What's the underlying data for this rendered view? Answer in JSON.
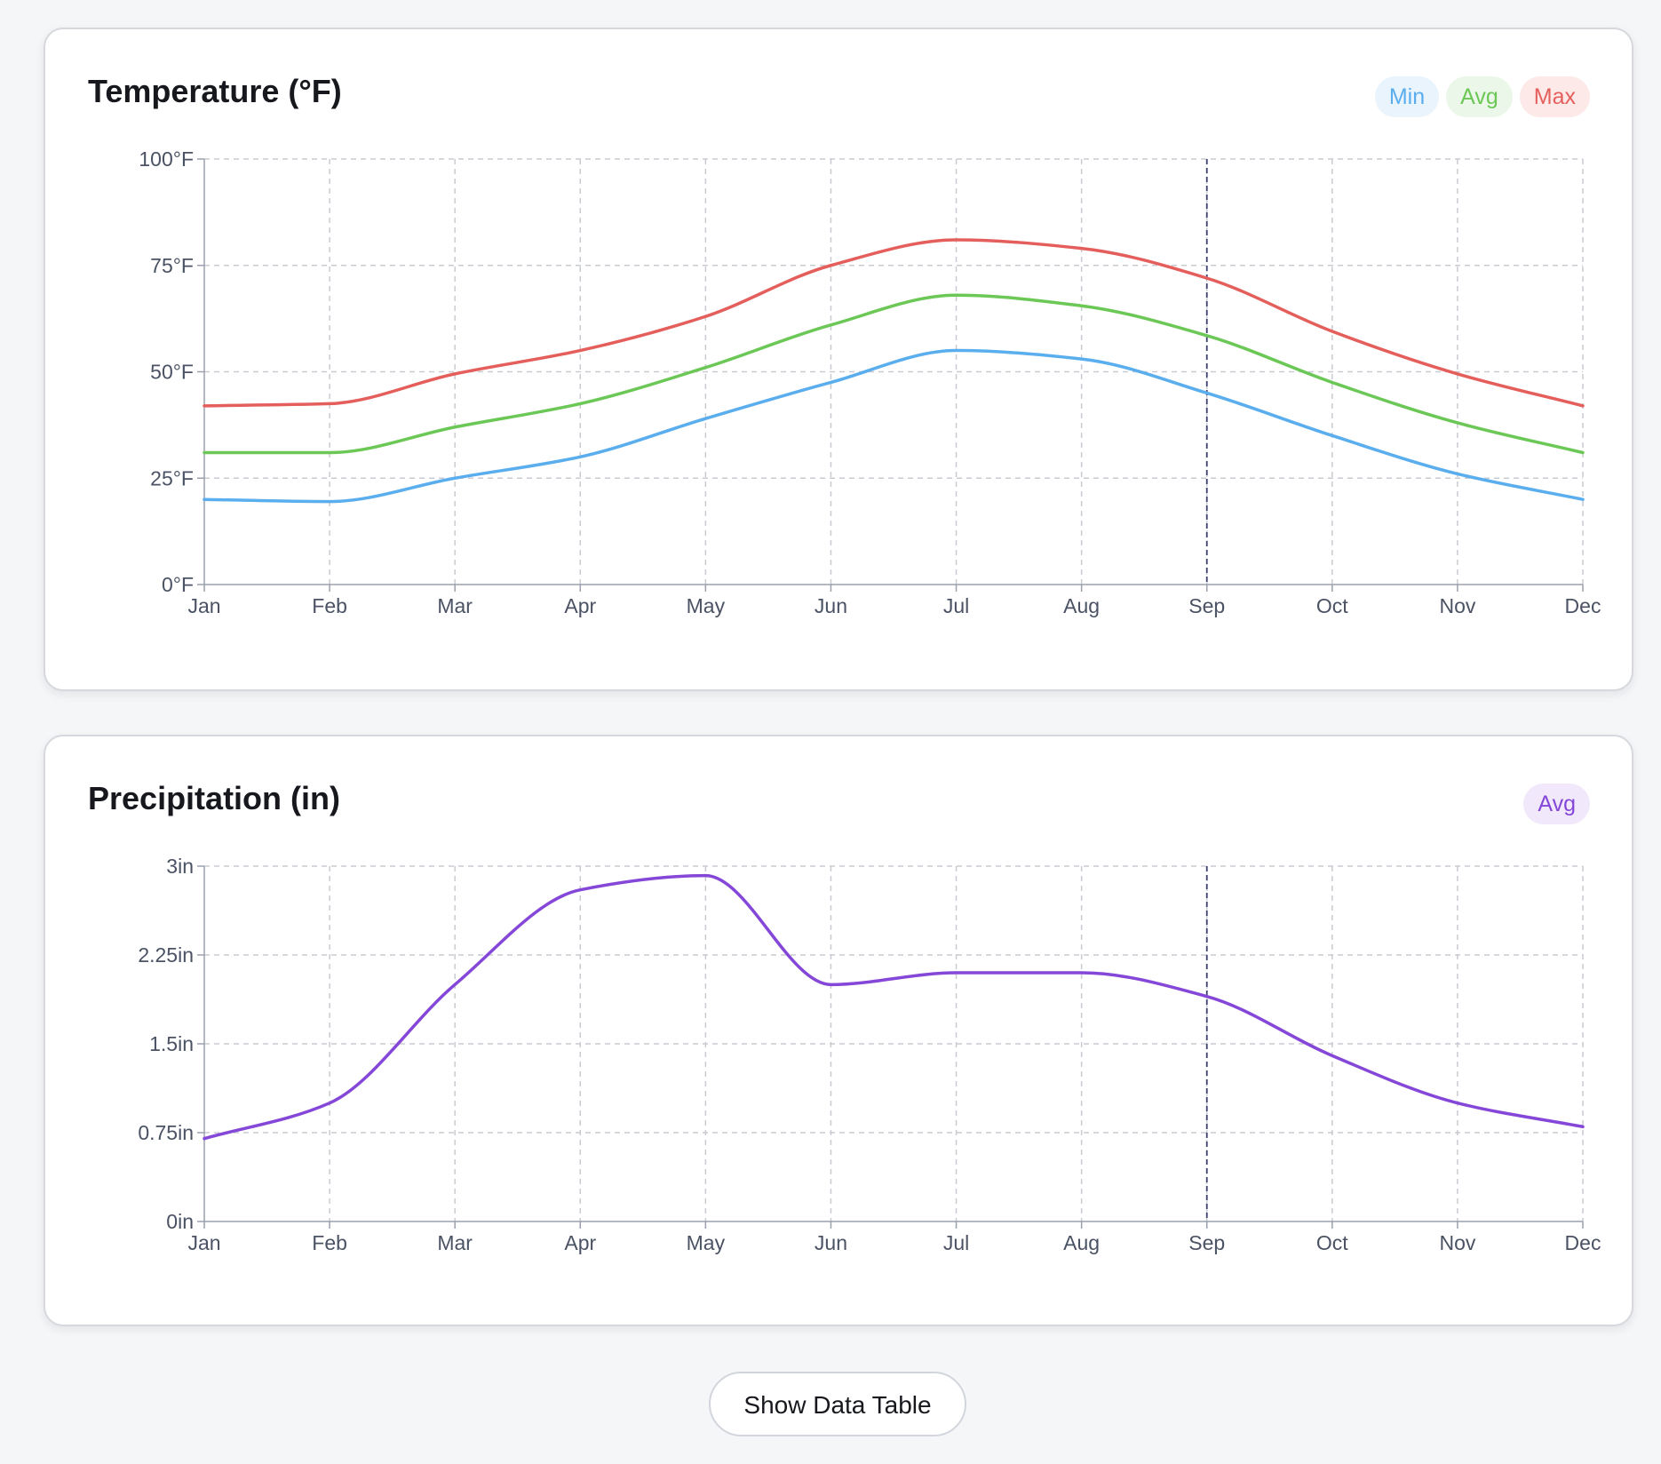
{
  "colors": {
    "min": "#5aaeee",
    "avg": "#6cc856",
    "max": "#e45f5c",
    "precip": "#8547d8",
    "min_bg": "#e9f4fd",
    "avg_bg": "#ebf7e8",
    "max_bg": "#fce9e8",
    "precip_bg": "#f1e9fb",
    "cursor": "#3d3f6e"
  },
  "temperature": {
    "title": "Temperature (°F)",
    "legend": {
      "min": "Min",
      "avg": "Avg",
      "max": "Max"
    }
  },
  "precipitation": {
    "title": "Precipitation (in)",
    "legend": {
      "avg": "Avg"
    }
  },
  "controls": {
    "show_table_label": "Show Data Table"
  },
  "chart_data": [
    {
      "type": "line",
      "id": "temperature",
      "title": "Temperature (°F)",
      "categories": [
        "Jan",
        "Feb",
        "Mar",
        "Apr",
        "May",
        "Jun",
        "Jul",
        "Aug",
        "Sep",
        "Oct",
        "Nov",
        "Dec"
      ],
      "ylim": [
        0,
        100
      ],
      "yticks": [
        0,
        25,
        50,
        75,
        100
      ],
      "ytick_labels": [
        "0°F",
        "25°F",
        "50°F",
        "75°F",
        "100°F"
      ],
      "grid": true,
      "legend_position": "top-right",
      "highlight_category": "Sep",
      "series": [
        {
          "key": "min",
          "name": "Min",
          "values": [
            20,
            19.5,
            25,
            30,
            39,
            47.5,
            55,
            53,
            45,
            35,
            26,
            20
          ]
        },
        {
          "key": "avg",
          "name": "Avg",
          "values": [
            31,
            31,
            37,
            42.5,
            51,
            61,
            68,
            65.5,
            58.5,
            47.5,
            38,
            31
          ]
        },
        {
          "key": "max",
          "name": "Max",
          "values": [
            42,
            42.5,
            49.5,
            55,
            63,
            75,
            81,
            79,
            72,
            59.5,
            49.5,
            42
          ]
        }
      ]
    },
    {
      "type": "line",
      "id": "precipitation",
      "title": "Precipitation (in)",
      "categories": [
        "Jan",
        "Feb",
        "Mar",
        "Apr",
        "May",
        "Jun",
        "Jul",
        "Aug",
        "Sep",
        "Oct",
        "Nov",
        "Dec"
      ],
      "ylim": [
        0,
        3
      ],
      "yticks": [
        0,
        0.75,
        1.5,
        2.25,
        3
      ],
      "ytick_labels": [
        "0in",
        "0.75in",
        "1.5in",
        "2.25in",
        "3in"
      ],
      "grid": true,
      "legend_position": "top-right",
      "highlight_category": "Sep",
      "series": [
        {
          "key": "precip",
          "name": "Avg",
          "values": [
            0.7,
            1.0,
            2.0,
            2.8,
            2.92,
            2.0,
            2.1,
            2.1,
            1.9,
            1.4,
            1.0,
            0.8
          ]
        }
      ]
    }
  ]
}
